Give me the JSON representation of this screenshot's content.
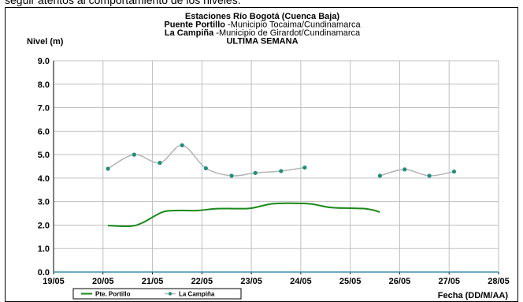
{
  "header": {
    "top_text": "seguir atentos al comportamiento de los niveles."
  },
  "chart_data": {
    "type": "line",
    "title_lines": [
      {
        "bold": "Estaciones Río Bogotá (Cuenca Baja)",
        "rest": ""
      },
      {
        "bold": "Puente Portillo",
        "rest": " -Municipio Tocaima/Cundinamarca"
      },
      {
        "bold": "La Campiña",
        "rest": " -Municipio de Girardot/Cundinamarca"
      },
      {
        "bold": "ULTIMA SEMANA",
        "rest": ""
      }
    ],
    "ylabel": "Nivel (m)",
    "xlabel": "Fecha (DD/M/AA)",
    "ylim": [
      0,
      9
    ],
    "yticks": [
      "0.0",
      "1.0",
      "2.0",
      "3.0",
      "4.0",
      "5.0",
      "6.0",
      "7.0",
      "8.0",
      "9.0"
    ],
    "xlim": [
      0,
      9
    ],
    "xticks": [
      "19/05",
      "20/05",
      "21/05",
      "22/05",
      "23/05",
      "24/05",
      "25/05",
      "26/05",
      "27/05",
      "28/05"
    ],
    "grid": true,
    "legend_position": "bottom-left",
    "series": [
      {
        "name": "Pte. Portillo",
        "color": "#1a8a1a",
        "markers": false,
        "points": [
          [
            1.1,
            1.98
          ],
          [
            1.55,
            1.95
          ],
          [
            1.8,
            2.1
          ],
          [
            2.2,
            2.55
          ],
          [
            2.5,
            2.62
          ],
          [
            2.9,
            2.62
          ],
          [
            3.3,
            2.7
          ],
          [
            3.7,
            2.7
          ],
          [
            4.0,
            2.72
          ],
          [
            4.4,
            2.9
          ],
          [
            4.8,
            2.93
          ],
          [
            5.2,
            2.9
          ],
          [
            5.6,
            2.75
          ],
          [
            6.0,
            2.72
          ],
          [
            6.3,
            2.7
          ],
          [
            6.5,
            2.62
          ],
          [
            6.6,
            2.55
          ]
        ]
      },
      {
        "name": "La Campiña",
        "color": "#b4b4b4",
        "marker_color": "#1f8f7a",
        "markers": true,
        "segments": [
          [
            [
              1.1,
              4.4
            ],
            [
              1.63,
              5.0
            ],
            [
              2.15,
              4.65
            ],
            [
              2.6,
              5.4
            ],
            [
              3.08,
              4.42
            ],
            [
              3.6,
              4.1
            ],
            [
              4.08,
              4.22
            ],
            [
              4.6,
              4.3
            ],
            [
              5.08,
              4.45
            ]
          ],
          [
            [
              6.6,
              4.1
            ],
            [
              7.1,
              4.37
            ],
            [
              7.6,
              4.1
            ],
            [
              8.1,
              4.28
            ]
          ]
        ]
      },
      {
        "name": "",
        "color": "#3d8fb0",
        "markers": false,
        "points": [
          [
            0,
            0.0
          ],
          [
            9,
            0.0
          ]
        ]
      }
    ]
  }
}
